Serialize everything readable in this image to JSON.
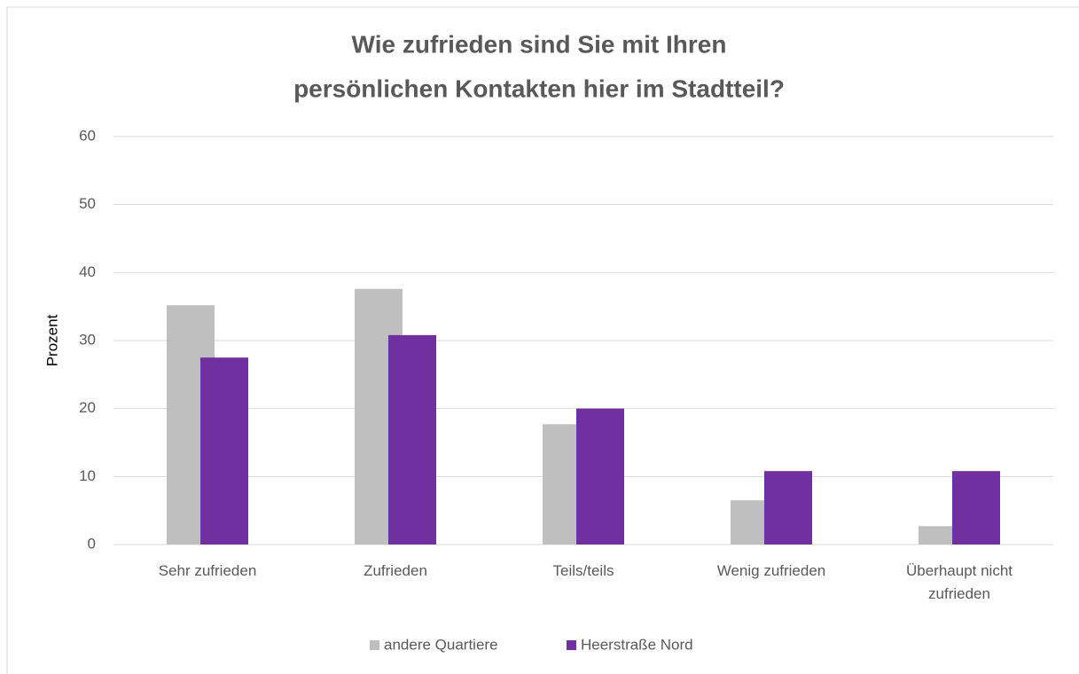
{
  "chart_data": {
    "type": "bar",
    "title": [
      "Wie zufrieden sind Sie mit Ihren",
      "persönlichen Kontakten hier im Stadtteil?"
    ],
    "y_label": "Prozent",
    "categories": [
      "Sehr zufrieden",
      "Zufrieden",
      "Teils/teils",
      "Wenig zufrieden",
      "Überhaupt nicht zufrieden"
    ],
    "series": [
      {
        "name": "andere Quartiere",
        "color": "#bfbfbf",
        "values": [
          35.2,
          37.6,
          17.7,
          6.5,
          2.7
        ]
      },
      {
        "name": "Heerstraße Nord",
        "color": "#7030a0",
        "values": [
          27.5,
          30.8,
          20.0,
          10.8,
          10.8
        ]
      }
    ],
    "ylim": [
      0,
      60
    ],
    "yticks": [
      0,
      10,
      20,
      30,
      40,
      50,
      60
    ],
    "grid": true,
    "legend": "bottom"
  }
}
